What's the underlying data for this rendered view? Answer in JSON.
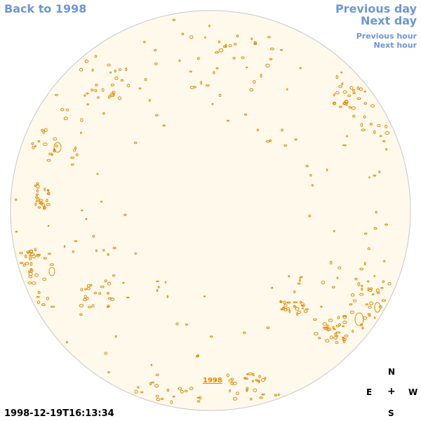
{
  "nav": {
    "back": "Back to 1998",
    "previous_day": "Previous day",
    "next_day": "Next day",
    "previous_hour": "Previous hour",
    "next_hour": "Next hour"
  },
  "image": {
    "timestamp": "1998-12-19T16:13:34",
    "year_label": "1998",
    "disk_fill": "#fff9ec",
    "disk_stroke": "#c8c8c8",
    "contour_color": "#e08a00"
  },
  "compass": {
    "north": "N",
    "east": "E",
    "center": "+",
    "west": "W",
    "south": "S"
  },
  "link_color": "#6d96d8"
}
